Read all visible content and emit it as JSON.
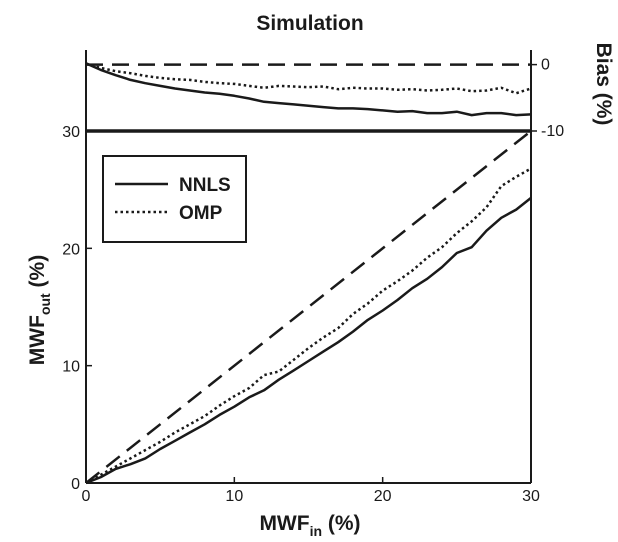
{
  "chart_data": [
    {
      "type": "line",
      "panel": "bias",
      "title": "Simulation",
      "ylabel": "Bias (%)",
      "xlim": [
        0,
        30
      ],
      "ylim": [
        -10,
        2.2
      ],
      "yticks": [
        0,
        -10
      ],
      "ytick_labels": [
        "0",
        "-10"
      ],
      "yaxis_side": "right",
      "grid": false,
      "series": [
        {
          "name": "NNLS",
          "style": "solid",
          "x": [
            0,
            1,
            2,
            3,
            4,
            5,
            6,
            7,
            8,
            9,
            10,
            11,
            12,
            13,
            14,
            15,
            16,
            17,
            18,
            19,
            20,
            21,
            22,
            23,
            24,
            25,
            26,
            27,
            28,
            29,
            30
          ],
          "y": [
            0.2,
            -0.8,
            -1.6,
            -2.3,
            -2.8,
            -3.2,
            -3.6,
            -3.9,
            -4.2,
            -4.4,
            -4.7,
            -5.1,
            -5.6,
            -5.8,
            -6.0,
            -6.2,
            -6.4,
            -6.6,
            -6.6,
            -6.7,
            -6.9,
            -7.1,
            -7.0,
            -7.3,
            -7.3,
            -7.1,
            -7.6,
            -7.3,
            -7.3,
            -7.6,
            -7.5
          ]
        },
        {
          "name": "OMP",
          "style": "dotted",
          "x": [
            0,
            1,
            2,
            3,
            4,
            5,
            6,
            7,
            8,
            9,
            10,
            11,
            12,
            13,
            14,
            15,
            16,
            17,
            18,
            19,
            20,
            21,
            22,
            23,
            24,
            25,
            26,
            27,
            28,
            29,
            30
          ],
          "y": [
            0.1,
            -0.5,
            -1.0,
            -1.3,
            -1.7,
            -2.0,
            -2.2,
            -2.3,
            -2.6,
            -2.8,
            -2.9,
            -3.2,
            -3.5,
            -3.2,
            -3.3,
            -3.4,
            -3.3,
            -3.7,
            -3.5,
            -3.6,
            -3.6,
            -3.8,
            -3.7,
            -3.9,
            -3.8,
            -3.6,
            -4.0,
            -3.9,
            -3.5,
            -4.3,
            -3.6
          ]
        },
        {
          "name": "",
          "style": "dashed",
          "x": [
            0,
            30
          ],
          "y": [
            0,
            0
          ]
        }
      ]
    },
    {
      "type": "line",
      "panel": "main",
      "xlabel_main": "MWF",
      "xlabel_sub": "in",
      "xlabel_unit": " (%)",
      "ylabel_main": "MWF",
      "ylabel_sub": "out",
      "ylabel_unit": " (%)",
      "xlim": [
        0,
        30
      ],
      "ylim": [
        0,
        30
      ],
      "xticks": [
        0,
        10,
        20,
        30
      ],
      "yticks": [
        0,
        10,
        20,
        30
      ],
      "legend_position": "top-left",
      "grid": false,
      "series": [
        {
          "name": "NNLS",
          "style": "solid",
          "x": [
            0,
            1,
            2,
            3,
            4,
            5,
            6,
            7,
            8,
            9,
            10,
            11,
            12,
            13,
            14,
            15,
            16,
            17,
            18,
            19,
            20,
            21,
            22,
            23,
            24,
            25,
            26,
            27,
            28,
            29,
            30
          ],
          "y": [
            0,
            0.5,
            1.2,
            1.6,
            2.1,
            2.9,
            3.6,
            4.3,
            5.0,
            5.8,
            6.5,
            7.3,
            7.9,
            8.8,
            9.6,
            10.4,
            11.2,
            12.0,
            12.9,
            13.9,
            14.7,
            15.6,
            16.6,
            17.4,
            18.4,
            19.6,
            20.1,
            21.5,
            22.6,
            23.3,
            24.3
          ]
        },
        {
          "name": "OMP",
          "style": "dotted",
          "x": [
            0,
            1,
            2,
            3,
            4,
            5,
            6,
            7,
            8,
            9,
            10,
            11,
            12,
            13,
            14,
            15,
            16,
            17,
            18,
            19,
            20,
            21,
            22,
            23,
            24,
            25,
            26,
            27,
            28,
            29,
            30
          ],
          "y": [
            0,
            0.7,
            1.4,
            2.1,
            2.8,
            3.5,
            4.3,
            5.0,
            5.7,
            6.6,
            7.4,
            8.1,
            9.2,
            9.5,
            10.5,
            11.5,
            12.4,
            13.2,
            14.4,
            15.3,
            16.4,
            17.2,
            18.1,
            19.2,
            20.1,
            21.3,
            22.3,
            23.5,
            25.3,
            26.1,
            26.8
          ]
        },
        {
          "name": "",
          "style": "dashed",
          "x": [
            0,
            30
          ],
          "y": [
            0,
            30
          ]
        }
      ]
    }
  ]
}
